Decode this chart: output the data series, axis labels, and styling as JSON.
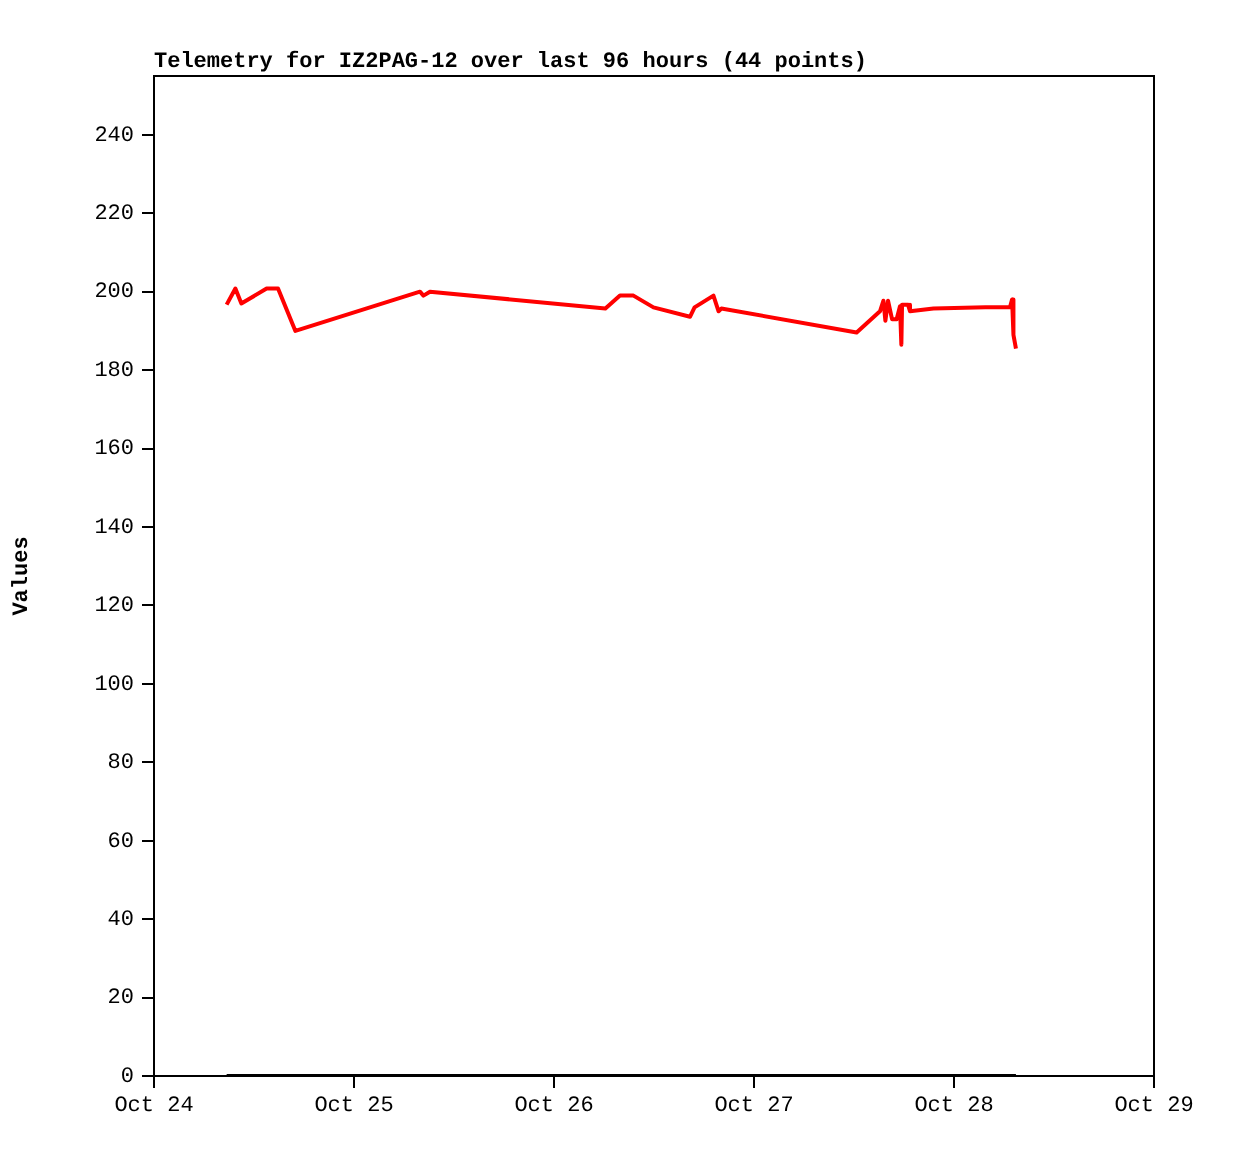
{
  "chart_data": {
    "type": "line",
    "title": "Telemetry for IZ2PAG-12 over last 96 hours (44 points)",
    "ylabel": "Values",
    "xlim": [
      "--10-24",
      "--10-29"
    ],
    "xticks": [
      {
        "value": "--10-24",
        "label": "Oct 24"
      },
      {
        "value": "--10-25",
        "label": "Oct 25"
      },
      {
        "value": "--10-26",
        "label": "Oct 26"
      },
      {
        "value": "--10-27",
        "label": "Oct 27"
      },
      {
        "value": "--10-28",
        "label": "Oct 28"
      },
      {
        "value": "--10-29",
        "label": "Oct 29"
      }
    ],
    "ylim": [
      0,
      255
    ],
    "yticks": [
      0,
      20,
      40,
      60,
      80,
      100,
      120,
      140,
      160,
      180,
      200,
      220,
      240
    ],
    "grid": false,
    "legend": false,
    "marker": "none",
    "line_style": "solid",
    "series": [
      {
        "color": "#ff0000",
        "x": [
          "--10-24T08:43",
          "--10-24T09:46",
          "--10-24T10:29",
          "--10-24T13:31",
          "--10-24T14:53",
          "--10-24T16:58",
          "--10-25T07:55",
          "--10-25T08:20",
          "--10-25T09:07",
          "--10-26T06:10",
          "--10-26T07:55",
          "--10-26T09:32",
          "--10-26T11:56",
          "--10-26T16:19",
          "--10-26T16:52",
          "--10-26T19:08",
          "--10-26T19:45",
          "--10-26T20:05",
          "--10-27T12:19",
          "--10-27T15:07",
          "--10-27T15:32",
          "--10-27T15:46",
          "--10-27T16:05",
          "--10-27T16:34",
          "--10-27T17:07",
          "--10-27T17:31",
          "--10-27T17:41",
          "--10-27T17:46",
          "--10-27T18:29",
          "--10-27T18:43",
          "--10-27T21:32",
          "--10-28T03:46",
          "--10-28T06:43",
          "--10-28T06:58",
          "--10-28T07:08",
          "--10-28T07:26"
        ],
        "values": [
          196.7,
          200.8,
          197,
          200.8,
          200.8,
          190,
          200,
          199,
          200,
          195.7,
          199,
          199,
          196,
          193.6,
          196,
          199,
          195,
          195.7,
          189.6,
          195,
          197.7,
          192.6,
          197.7,
          193,
          193,
          196.3,
          186.5,
          196.7,
          196.7,
          195,
          195.7,
          196,
          196,
          198,
          189,
          185.5
        ]
      },
      {
        "color": "#000000",
        "x": [
          "--10-24T08:43",
          "--10-28T07:26"
        ],
        "values": [
          0,
          0
        ]
      }
    ]
  }
}
